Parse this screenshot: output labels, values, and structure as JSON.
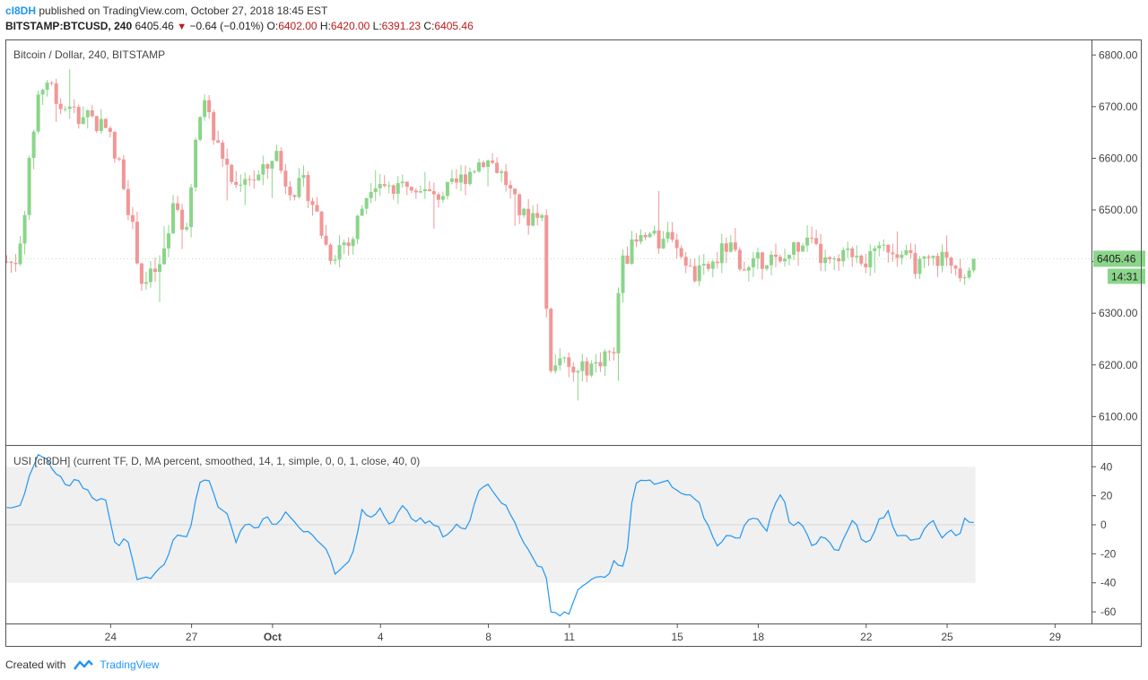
{
  "header": {
    "user": "cI8DH",
    "published_text": "published on TradingView.com, October 27, 2018 18:45 EST",
    "symbol": "BITSTAMP:BTCUSD, 240",
    "last": "6405.46",
    "change": "−0.64 (−0.01%)",
    "open_label": "O:",
    "open": "6402.00",
    "high_label": "H:",
    "high": "6420.00",
    "low_label": "L:",
    "low": "6391.23",
    "close_label": "C:",
    "close": "6405.46"
  },
  "footer": {
    "created_with": "Created with",
    "brand": "TradingView"
  },
  "colors": {
    "up": "#8bd58a",
    "down": "#f29696",
    "usi_line": "#2196f3",
    "band": "#f0f0f0",
    "price_tag": "#8bd58a",
    "border": "#555555"
  },
  "chart_data": [
    {
      "type": "candlestick",
      "title": "Bitcoin / Dollar, 240, BITSTAMP",
      "ylim": [
        6045,
        6830
      ],
      "y_ticks": [
        6100,
        6200,
        6300,
        6400,
        6500,
        6600,
        6700,
        6800
      ],
      "y_tick_labels": [
        "6100.00",
        "6200.00",
        "6300.00",
        "6400.00",
        "6500.00",
        "6600.00",
        "6700.00",
        "6800.00"
      ],
      "x_ticks": [
        {
          "label": "24",
          "day": 24
        },
        {
          "label": "27",
          "day": 27
        },
        {
          "label": "Oct",
          "day": 30
        },
        {
          "label": "4",
          "day": 34
        },
        {
          "label": "8",
          "day": 38
        },
        {
          "label": "11",
          "day": 41
        },
        {
          "label": "15",
          "day": 45
        },
        {
          "label": "18",
          "day": 48
        },
        {
          "label": "22",
          "day": 52
        },
        {
          "label": "25",
          "day": 55
        },
        {
          "label": "29",
          "day": 59
        }
      ],
      "x_range_days": [
        20.1,
        60.35
      ],
      "last_price_label": "6405.46",
      "countdown_label": "14:31",
      "last_price": 6405.46,
      "anchors": [
        [
          20.15,
          6400
        ],
        [
          20.45,
          6395
        ],
        [
          20.75,
          6470
        ],
        [
          21.1,
          6640
        ],
        [
          21.3,
          6720
        ],
        [
          21.6,
          6750
        ],
        [
          21.9,
          6735
        ],
        [
          22.2,
          6690
        ],
        [
          22.5,
          6710
        ],
        [
          22.8,
          6670
        ],
        [
          23.1,
          6700
        ],
        [
          23.5,
          6660
        ],
        [
          23.8,
          6680
        ],
        [
          24.15,
          6600
        ],
        [
          24.4,
          6580
        ],
        [
          24.75,
          6480
        ],
        [
          25.2,
          6350
        ],
        [
          25.6,
          6380
        ],
        [
          25.9,
          6390
        ],
        [
          26.3,
          6500
        ],
        [
          26.6,
          6470
        ],
        [
          26.9,
          6490
        ],
        [
          27.2,
          6650
        ],
        [
          27.5,
          6720
        ],
        [
          27.8,
          6640
        ],
        [
          28.2,
          6600
        ],
        [
          28.6,
          6540
        ],
        [
          28.9,
          6570
        ],
        [
          29.4,
          6560
        ],
        [
          29.8,
          6580
        ],
        [
          30.1,
          6620
        ],
        [
          30.4,
          6560
        ],
        [
          30.8,
          6540
        ],
        [
          31.2,
          6550
        ],
        [
          31.6,
          6500
        ],
        [
          31.9,
          6440
        ],
        [
          32.2,
          6410
        ],
        [
          32.6,
          6440
        ],
        [
          32.9,
          6430
        ],
        [
          33.2,
          6490
        ],
        [
          33.7,
          6560
        ],
        [
          34.2,
          6550
        ],
        [
          34.6,
          6530
        ],
        [
          35.0,
          6560
        ],
        [
          35.4,
          6550
        ],
        [
          35.8,
          6530
        ],
        [
          36.2,
          6530
        ],
        [
          36.6,
          6540
        ],
        [
          37.0,
          6560
        ],
        [
          37.4,
          6580
        ],
        [
          37.8,
          6600
        ],
        [
          38.2,
          6590
        ],
        [
          38.6,
          6560
        ],
        [
          39.0,
          6510
        ],
        [
          39.4,
          6480
        ],
        [
          39.8,
          6500
        ],
        [
          40.05,
          6480
        ],
        [
          40.2,
          6220
        ],
        [
          40.4,
          6190
        ],
        [
          40.7,
          6210
        ],
        [
          41.0,
          6190
        ],
        [
          41.3,
          6180
        ],
        [
          41.7,
          6200
        ],
        [
          42.0,
          6200
        ],
        [
          42.4,
          6230
        ],
        [
          42.65,
          6210
        ],
        [
          42.85,
          6380
        ],
        [
          43.2,
          6420
        ],
        [
          43.6,
          6440
        ],
        [
          44.0,
          6450
        ],
        [
          44.4,
          6430
        ],
        [
          44.8,
          6460
        ],
        [
          45.2,
          6400
        ],
        [
          45.6,
          6370
        ],
        [
          46.0,
          6380
        ],
        [
          46.4,
          6400
        ],
        [
          46.8,
          6430
        ],
        [
          47.2,
          6410
        ],
        [
          47.6,
          6380
        ],
        [
          48.0,
          6400
        ],
        [
          48.4,
          6410
        ],
        [
          48.8,
          6390
        ],
        [
          49.2,
          6420
        ],
        [
          49.6,
          6440
        ],
        [
          50.0,
          6430
        ],
        [
          50.4,
          6400
        ],
        [
          50.8,
          6390
        ],
        [
          51.2,
          6410
        ],
        [
          51.6,
          6420
        ],
        [
          52.0,
          6400
        ],
        [
          52.4,
          6410
        ],
        [
          52.8,
          6430
        ],
        [
          53.2,
          6420
        ],
        [
          53.6,
          6400
        ],
        [
          54.0,
          6390
        ],
        [
          54.4,
          6400
        ],
        [
          54.8,
          6410
        ],
        [
          55.2,
          6400
        ],
        [
          55.6,
          6380
        ],
        [
          55.9,
          6400
        ],
        [
          56.05,
          6405.46
        ]
      ]
    },
    {
      "type": "line",
      "title": "USI [cI8DH] (current TF, D, MA percent, smoothed, 14, 1, simple, 0, 0, 1, close, 40, 0)",
      "ylim": [
        -68,
        55
      ],
      "y_ticks": [
        -60,
        -40,
        -20,
        0,
        20,
        40
      ],
      "y_tick_labels": [
        "-60",
        "-40",
        "-20",
        "0",
        "20",
        "40"
      ],
      "band": [
        -40,
        40
      ],
      "zero_line": 0,
      "series": [
        {
          "values": [
            [
              20.15,
              10
            ],
            [
              20.7,
              15
            ],
            [
              21.0,
              35
            ],
            [
              21.3,
              48
            ],
            [
              21.7,
              44
            ],
            [
              22.0,
              35
            ],
            [
              22.4,
              28
            ],
            [
              22.7,
              30
            ],
            [
              23.1,
              25
            ],
            [
              23.4,
              18
            ],
            [
              23.8,
              20
            ],
            [
              24.2,
              -15
            ],
            [
              24.6,
              -10
            ],
            [
              25.0,
              -40
            ],
            [
              25.5,
              -35
            ],
            [
              25.9,
              -30
            ],
            [
              26.3,
              -12
            ],
            [
              26.6,
              -5
            ],
            [
              26.9,
              -12
            ],
            [
              27.2,
              25
            ],
            [
              27.6,
              35
            ],
            [
              27.9,
              15
            ],
            [
              28.3,
              10
            ],
            [
              28.6,
              -12
            ],
            [
              29.0,
              2
            ],
            [
              29.4,
              -2
            ],
            [
              29.8,
              5
            ],
            [
              30.1,
              -2
            ],
            [
              30.5,
              10
            ],
            [
              30.9,
              0
            ],
            [
              31.3,
              -5
            ],
            [
              31.6,
              -10
            ],
            [
              32.0,
              -15
            ],
            [
              32.3,
              -35
            ],
            [
              32.7,
              -28
            ],
            [
              33.0,
              -20
            ],
            [
              33.3,
              10
            ],
            [
              33.6,
              5
            ],
            [
              34.0,
              12
            ],
            [
              34.4,
              0
            ],
            [
              34.8,
              12
            ],
            [
              35.2,
              5
            ],
            [
              35.6,
              2
            ],
            [
              36.0,
              0
            ],
            [
              36.4,
              -8
            ],
            [
              36.8,
              0
            ],
            [
              37.2,
              -5
            ],
            [
              37.6,
              25
            ],
            [
              38.0,
              28
            ],
            [
              38.4,
              18
            ],
            [
              38.8,
              8
            ],
            [
              39.2,
              -8
            ],
            [
              39.6,
              -20
            ],
            [
              39.85,
              -28
            ],
            [
              40.1,
              -30
            ],
            [
              40.3,
              -60
            ],
            [
              40.7,
              -62
            ],
            [
              41.0,
              -60
            ],
            [
              41.3,
              -45
            ],
            [
              41.6,
              -40
            ],
            [
              42.0,
              -38
            ],
            [
              42.4,
              -35
            ],
            [
              42.7,
              -25
            ],
            [
              42.9,
              -30
            ],
            [
              43.1,
              -25
            ],
            [
              43.4,
              30
            ],
            [
              43.8,
              32
            ],
            [
              44.2,
              28
            ],
            [
              44.6,
              30
            ],
            [
              45.0,
              25
            ],
            [
              45.4,
              20
            ],
            [
              45.8,
              15
            ],
            [
              46.2,
              -5
            ],
            [
              46.5,
              -15
            ],
            [
              46.9,
              -5
            ],
            [
              47.3,
              -10
            ],
            [
              47.6,
              5
            ],
            [
              48.0,
              5
            ],
            [
              48.3,
              -5
            ],
            [
              48.6,
              15
            ],
            [
              48.9,
              20
            ],
            [
              49.2,
              -2
            ],
            [
              49.6,
              2
            ],
            [
              50.0,
              -15
            ],
            [
              50.3,
              -8
            ],
            [
              50.6,
              -10
            ],
            [
              50.9,
              -20
            ],
            [
              51.2,
              -8
            ],
            [
              51.5,
              5
            ],
            [
              51.8,
              -8
            ],
            [
              52.1,
              -15
            ],
            [
              52.4,
              0
            ],
            [
              52.8,
              10
            ],
            [
              53.1,
              -10
            ],
            [
              53.4,
              -5
            ],
            [
              53.7,
              -12
            ],
            [
              54.0,
              -8
            ],
            [
              54.4,
              5
            ],
            [
              54.8,
              -8
            ],
            [
              55.1,
              -2
            ],
            [
              55.4,
              -8
            ],
            [
              55.7,
              5
            ],
            [
              55.9,
              -2
            ],
            [
              56.05,
              1
            ]
          ]
        }
      ]
    }
  ]
}
